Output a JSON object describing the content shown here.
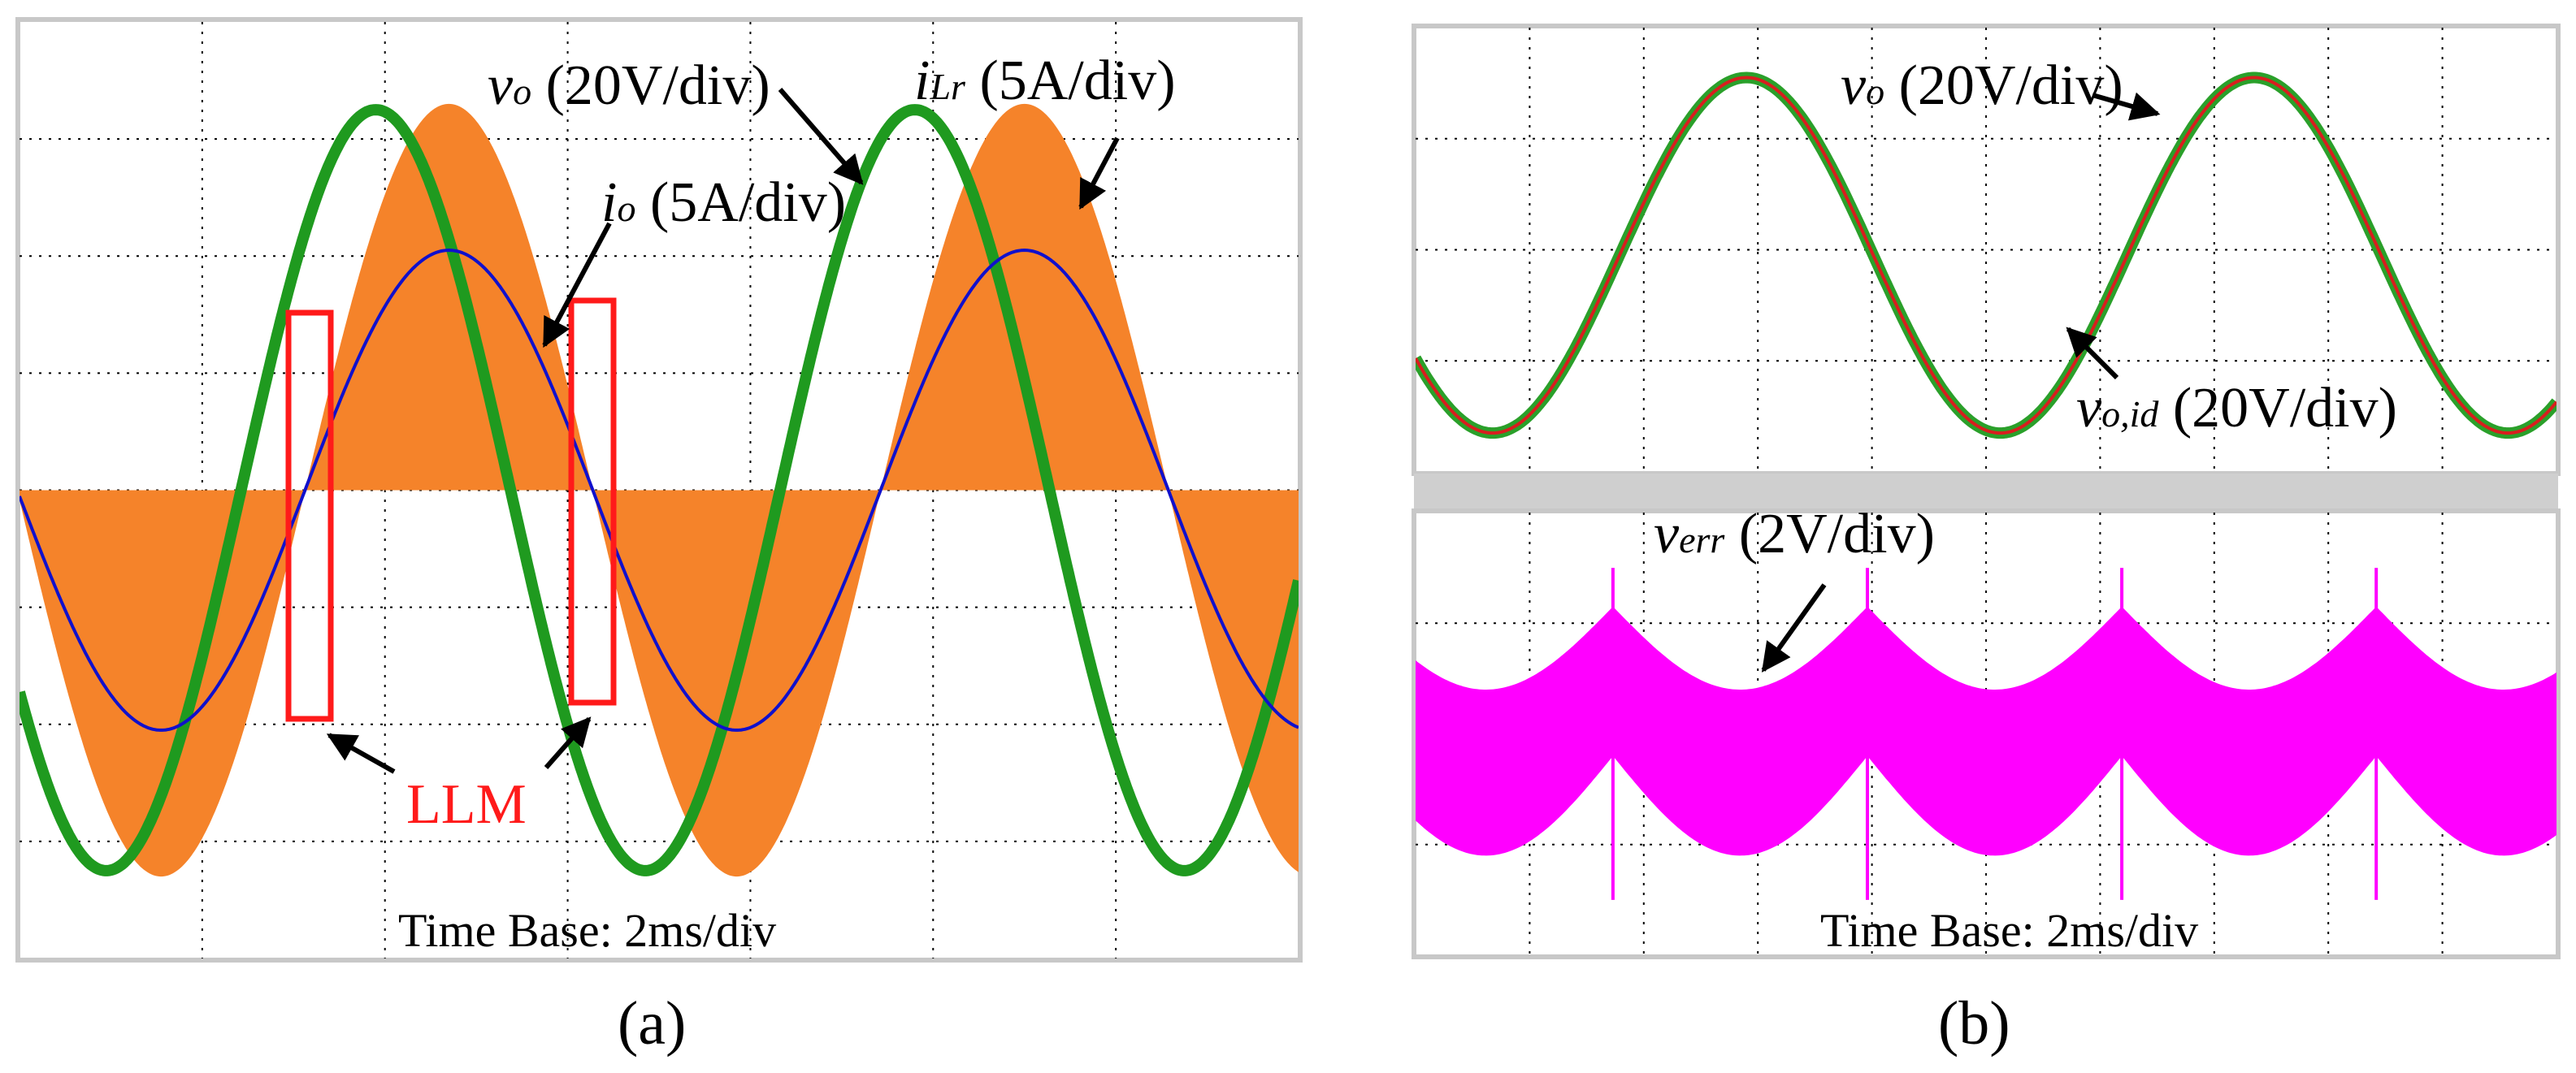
{
  "figure": {
    "panel_a": {
      "caption": "(a)",
      "time_base": "Time Base: 2ms/div",
      "grid": {
        "divisions_x": 7,
        "divisions_y": 8
      },
      "labels": {
        "vo": {
          "sym": "v",
          "sub": "o",
          "rest": " (20V/div)"
        },
        "io": {
          "sym": "i",
          "sub": "o",
          "rest": " (5A/div)"
        },
        "iLr": {
          "sym": "i",
          "sub": "Lr",
          "rest": " (5A/div)"
        },
        "llm": "LLM"
      }
    },
    "panel_b": {
      "caption": "(b)",
      "time_base": "Time Base: 2ms/div",
      "labels": {
        "vo": {
          "sym": "v",
          "sub": "o",
          "rest": " (20V/div)"
        },
        "void": {
          "sym": "v",
          "sub": "o,id",
          "rest": " (20V/div)"
        },
        "verr": {
          "sym": "v",
          "sub": "err",
          "rest": " (2V/div)"
        }
      }
    }
  },
  "chart_data": [
    {
      "type": "line",
      "panel": "a",
      "title": "",
      "xlabel": "Time Base: 2ms/div",
      "x_range_div": [
        0,
        7
      ],
      "ylim_div": [
        -4,
        4
      ],
      "grid": true,
      "series": [
        {
          "name": "vo (20V/div)",
          "color": "#1f9a1f",
          "kind": "sine",
          "amplitude_div": 3.25,
          "offset_div": 0,
          "period_div": 2.95,
          "peak_at_div": 1.95
        },
        {
          "name": "io (5A/div)",
          "color": "#1010cc",
          "kind": "sine",
          "amplitude_div": 2.05,
          "offset_div": 0,
          "period_div": 3.15,
          "peak_at_div": 2.35
        },
        {
          "name": "iLr (5A/div)",
          "color": "#f5832a",
          "kind": "switching envelope",
          "amplitude_div": 3.3,
          "offset_div": 0
        }
      ],
      "annotations": [
        "LLM",
        "LLM"
      ]
    },
    {
      "type": "line",
      "panel": "b-top",
      "title": "",
      "x_range_div": [
        0,
        10
      ],
      "ylim_div": [
        -2,
        2
      ],
      "grid": true,
      "series": [
        {
          "name": "vo (20V/div)",
          "color": "#2aa02a",
          "kind": "sine",
          "amplitude_div": 1.6,
          "offset_div": -0.05,
          "period_div": 4.45,
          "peak_at_div": 2.9
        },
        {
          "name": "vo,id (20V/div)",
          "color": "#d81e1e",
          "kind": "sine",
          "amplitude_div": 1.6,
          "offset_div": -0.05,
          "period_div": 4.45,
          "peak_at_div": 2.9
        }
      ]
    },
    {
      "type": "line",
      "panel": "b-bottom",
      "title": "",
      "xlabel": "Time Base: 2ms/div",
      "x_range_div": [
        0,
        10
      ],
      "ylim_div": [
        -2,
        2
      ],
      "grid": true,
      "series": [
        {
          "name": "verr (2V/div)",
          "color": "#ff00ff",
          "kind": "switching ripple",
          "amplitude_div": 1.5,
          "period_div": 2.23
        }
      ]
    }
  ]
}
